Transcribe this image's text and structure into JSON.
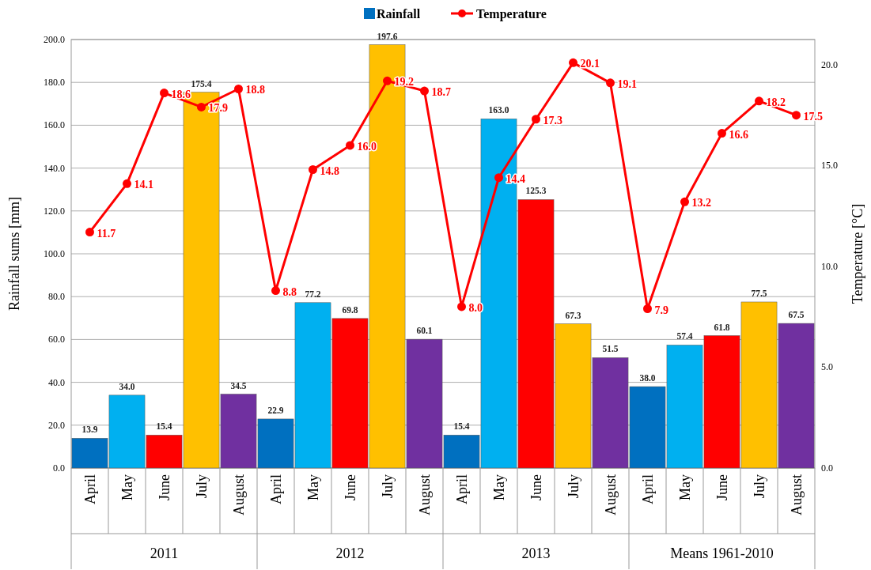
{
  "chart_data": {
    "type": "bar",
    "categories": [
      "April",
      "May",
      "June",
      "July",
      "August",
      "April",
      "May",
      "June",
      "July",
      "August",
      "April",
      "May",
      "June",
      "July",
      "August",
      "April",
      "May",
      "June",
      "July",
      "August"
    ],
    "annotations": [
      "2011",
      "2012",
      "2013",
      "Means 1961-2010"
    ],
    "ylabel": "Rainfall sums [mm]",
    "y2label": "Temperature [°C]",
    "ylim": [
      0,
      200
    ],
    "yticks": [
      {
        "value": 0,
        "label": "0.0"
      },
      {
        "value": 20,
        "label": "20.0"
      },
      {
        "value": 40,
        "label": "40.0"
      },
      {
        "value": 60,
        "label": "60.0"
      },
      {
        "value": 80,
        "label": "80.0"
      },
      {
        "value": 100,
        "label": "100.0"
      },
      {
        "value": 120,
        "label": "120.0"
      },
      {
        "value": 140,
        "label": "140.0"
      },
      {
        "value": 160,
        "label": "160.0"
      },
      {
        "value": 180,
        "label": "180.0"
      },
      {
        "value": 200,
        "label": "200.0"
      }
    ],
    "y2lim": [
      0,
      21.25
    ],
    "y2ticks": [
      {
        "value": 0,
        "label": "0.0"
      },
      {
        "value": 5,
        "label": "5.0"
      },
      {
        "value": 10,
        "label": "10.0"
      },
      {
        "value": 15,
        "label": "15.0"
      },
      {
        "value": 20,
        "label": "20.0"
      }
    ],
    "grid": "y",
    "legend": "top",
    "series": [
      {
        "name": "Rainfall",
        "color": "#0070c0",
        "colors": [
          "#0070c0",
          "#00b0f0",
          "#ff0000",
          "#ffc000",
          "#7030a0",
          "#0070c0",
          "#00b0f0",
          "#ff0000",
          "#ffc000",
          "#7030a0",
          "#0070c0",
          "#00b0f0",
          "#ff0000",
          "#ffc000",
          "#7030a0",
          "#0070c0",
          "#00b0f0",
          "#ff0000",
          "#ffc000",
          "#7030a0"
        ],
        "values": [
          13.9,
          34.0,
          15.4,
          175.4,
          34.5,
          22.9,
          77.2,
          69.8,
          197.6,
          60.1,
          15.4,
          163.0,
          125.3,
          67.3,
          51.5,
          38.0,
          57.4,
          61.8,
          77.5,
          67.5
        ],
        "value_labels": [
          "13.9",
          "34.0",
          "15.4",
          "175.4",
          "34.5",
          "22.9",
          "77.2",
          "69.8",
          "197.6",
          "60.1",
          "15.4",
          "163.0",
          "125.3",
          "67.3",
          "51.5",
          "38.0",
          "57.4",
          "61.8",
          "77.5",
          "67.5"
        ]
      },
      {
        "name": "Temperature",
        "type": "line",
        "axis": "y2",
        "color": "#ff0000",
        "marker": "circle",
        "values": [
          11.7,
          14.1,
          18.6,
          17.9,
          18.8,
          8.8,
          14.8,
          16.0,
          19.2,
          18.7,
          8.0,
          14.4,
          17.3,
          20.1,
          19.1,
          7.9,
          13.2,
          16.6,
          18.2,
          17.5
        ],
        "value_labels": [
          "11.7",
          "14.1",
          "18.6",
          "17.9",
          "18.8",
          "8.8",
          "14.8",
          "16.0",
          "19.2",
          "18.7",
          "8.0",
          "14.4",
          "17.3",
          "20.1",
          "19.1",
          "7.9",
          "13.2",
          "16.6",
          "18.2",
          "17.5"
        ]
      }
    ]
  }
}
